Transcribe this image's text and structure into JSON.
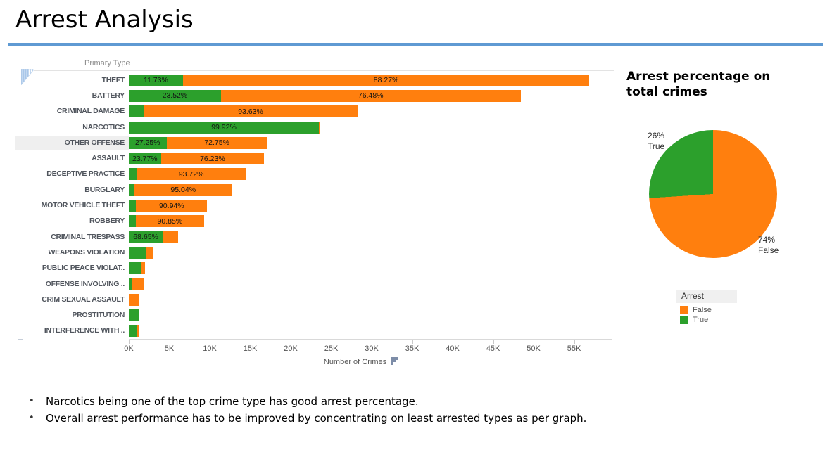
{
  "slide": {
    "title": "Arrest Analysis",
    "accent_rule_color": "#5F9AD3",
    "notes": [
      "Narcotics being one of the top crime type has good arrest percentage.",
      "Overall arrest performance has to be improved by concentrating on least arrested types as per graph."
    ]
  },
  "chart_data": [
    {
      "type": "bar",
      "orientation": "horizontal",
      "stacked": true,
      "column_header": "Primary Type",
      "xlabel": "Number of Crimes",
      "x_tick_values_k": [
        0,
        5,
        10,
        15,
        20,
        25,
        30,
        35,
        40,
        45,
        50,
        55
      ],
      "x_tick_labels": [
        "0K",
        "5K",
        "10K",
        "15K",
        "20K",
        "25K",
        "30K",
        "35K",
        "40K",
        "45K",
        "50K",
        "55K"
      ],
      "xlim_k": [
        0,
        60
      ],
      "grid": false,
      "colors": {
        "arrest_true": "#2CA02C",
        "arrest_false": "#FF7F0E"
      },
      "legend": {
        "title": "Arrest",
        "items": [
          {
            "label": "False",
            "color": "#FF7F0E"
          },
          {
            "label": "True",
            "color": "#2CA02C"
          }
        ]
      },
      "rows": [
        {
          "category": "THEFT",
          "total_crimes_k": 56.9,
          "true_pct": 11.73,
          "false_pct": 88.27,
          "true_label": "11.73%",
          "false_label": "88.27%",
          "highlighted": false
        },
        {
          "category": "BATTERY",
          "total_crimes_k": 48.4,
          "true_pct": 23.52,
          "false_pct": 76.48,
          "true_label": "23.52%",
          "false_label": "76.48%",
          "highlighted": false
        },
        {
          "category": "CRIMINAL DAMAGE",
          "total_crimes_k": 28.3,
          "true_pct": 6.37,
          "false_pct": 93.63,
          "true_label": null,
          "false_label": "93.63%",
          "highlighted": false
        },
        {
          "category": "NARCOTICS",
          "total_crimes_k": 23.5,
          "true_pct": 99.92,
          "false_pct": 0.08,
          "true_label": "99.92%",
          "false_label": null,
          "highlighted": false
        },
        {
          "category": "OTHER OFFENSE",
          "total_crimes_k": 17.1,
          "true_pct": 27.25,
          "false_pct": 72.75,
          "true_label": "27.25%",
          "false_label": "72.75%",
          "highlighted": true
        },
        {
          "category": "ASSAULT",
          "total_crimes_k": 16.7,
          "true_pct": 23.77,
          "false_pct": 76.23,
          "true_label": "23.77%",
          "false_label": "76.23%",
          "highlighted": false
        },
        {
          "category": "DECEPTIVE PRACTICE",
          "total_crimes_k": 14.5,
          "true_pct": 6.28,
          "false_pct": 93.72,
          "true_label": null,
          "false_label": "93.72%",
          "highlighted": false
        },
        {
          "category": "BURGLARY",
          "total_crimes_k": 12.8,
          "true_pct": 4.96,
          "false_pct": 95.04,
          "true_label": null,
          "false_label": "95.04%",
          "highlighted": false
        },
        {
          "category": "MOTOR VEHICLE THEFT",
          "total_crimes_k": 9.7,
          "true_pct": 9.06,
          "false_pct": 90.94,
          "true_label": null,
          "false_label": "90.94%",
          "highlighted": false
        },
        {
          "category": "ROBBERY",
          "total_crimes_k": 9.3,
          "true_pct": 9.15,
          "false_pct": 90.85,
          "true_label": null,
          "false_label": "90.85%",
          "highlighted": false
        },
        {
          "category": "CRIMINAL TRESPASS",
          "total_crimes_k": 6.1,
          "true_pct": 68.65,
          "false_pct": 31.35,
          "true_label": "68.65%",
          "false_label": null,
          "highlighted": false
        },
        {
          "category": "WEAPONS VIOLATION",
          "total_crimes_k": 3.0,
          "true_pct": 72,
          "false_pct": 28,
          "true_label": null,
          "false_label": null,
          "highlighted": false
        },
        {
          "category": "PUBLIC PEACE VIOLAT..",
          "total_crimes_k": 2.0,
          "true_pct": 72,
          "false_pct": 28,
          "true_label": null,
          "false_label": null,
          "highlighted": false
        },
        {
          "category": "OFFENSE INVOLVING ..",
          "total_crimes_k": 1.9,
          "true_pct": 18,
          "false_pct": 82,
          "true_label": null,
          "false_label": null,
          "highlighted": false
        },
        {
          "category": "CRIM SEXUAL ASSAULT",
          "total_crimes_k": 1.2,
          "true_pct": 2,
          "false_pct": 98,
          "true_label": null,
          "false_label": null,
          "highlighted": false
        },
        {
          "category": "PROSTITUTION",
          "total_crimes_k": 1.3,
          "true_pct": 100,
          "false_pct": 0,
          "true_label": null,
          "false_label": null,
          "highlighted": false
        },
        {
          "category": "INTERFERENCE WITH ..",
          "total_crimes_k": 1.2,
          "true_pct": 85,
          "false_pct": 15,
          "true_label": null,
          "false_label": null,
          "highlighted": false
        }
      ]
    },
    {
      "type": "pie",
      "title": "Arrest percentage on total crimes",
      "start_angle_deg": 0,
      "slices": [
        {
          "name": "False",
          "pct": 74,
          "pct_label": "74%",
          "color": "#FF7F0E"
        },
        {
          "name": "True",
          "pct": 26,
          "pct_label": "26%",
          "color": "#2CA02C"
        }
      ]
    }
  ]
}
